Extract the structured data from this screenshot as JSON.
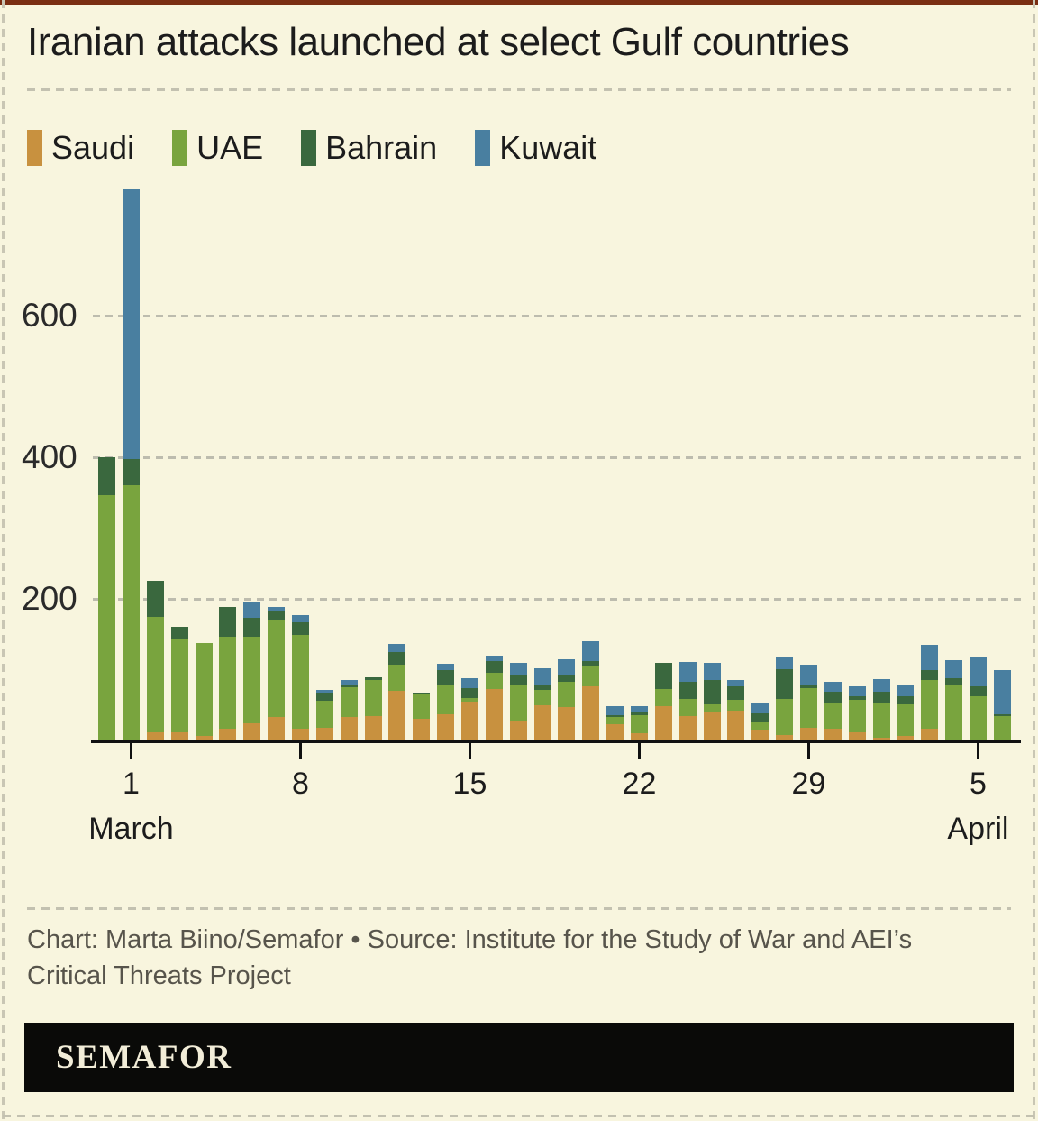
{
  "page": {
    "background": "#F8F5DE",
    "top_bar_color": "#7A2E12",
    "dash_color": "#c3c1b0"
  },
  "header": {
    "title": "Iranian attacks launched at select Gulf countries"
  },
  "legend": {
    "items": [
      {
        "label": "Saudi",
        "color": "#C8913F"
      },
      {
        "label": "UAE",
        "color": "#79A43E"
      },
      {
        "label": "Bahrain",
        "color": "#3A683E"
      },
      {
        "label": "Kuwait",
        "color": "#497FA0"
      }
    ]
  },
  "chart_data": {
    "type": "bar",
    "stacked": true,
    "title": "Iranian attacks launched at select Gulf countries",
    "xlabel": "",
    "ylabel": "",
    "ylim": [
      0,
      800
    ],
    "yticks": [
      200,
      400,
      600
    ],
    "grid": "horizontal-dashed",
    "legend_position": "top-left",
    "series_names": [
      "Saudi",
      "UAE",
      "Bahrain",
      "Kuwait"
    ],
    "colors": {
      "Saudi": "#C8913F",
      "UAE": "#79A43E",
      "Bahrain": "#3A683E",
      "Kuwait": "#497FA0"
    },
    "x_axis": {
      "tick_labels": [
        "1",
        "8",
        "15",
        "22",
        "29",
        "5"
      ],
      "tick_dates": [
        "Mar 1",
        "Mar 8",
        "Mar 15",
        "Mar 22",
        "Mar 29",
        "Apr 5"
      ],
      "month_left": "March",
      "month_right": "April"
    },
    "days": [
      {
        "date": "Feb 29",
        "Saudi": 0,
        "UAE": 346,
        "Bahrain": 54,
        "Kuwait": 0
      },
      {
        "date": "Mar 1",
        "Saudi": 0,
        "UAE": 361,
        "Bahrain": 36,
        "Kuwait": 381
      },
      {
        "date": "Mar 2",
        "Saudi": 11,
        "UAE": 163,
        "Bahrain": 51,
        "Kuwait": 0
      },
      {
        "date": "Mar 3",
        "Saudi": 11,
        "UAE": 133,
        "Bahrain": 17,
        "Kuwait": 0
      },
      {
        "date": "Mar 4",
        "Saudi": 7,
        "UAE": 130,
        "Bahrain": 0,
        "Kuwait": 0
      },
      {
        "date": "Mar 5",
        "Saudi": 16,
        "UAE": 130,
        "Bahrain": 43,
        "Kuwait": 0
      },
      {
        "date": "Mar 6",
        "Saudi": 24,
        "UAE": 123,
        "Bahrain": 26,
        "Kuwait": 23
      },
      {
        "date": "Mar 7",
        "Saudi": 33,
        "UAE": 138,
        "Bahrain": 11,
        "Kuwait": 7
      },
      {
        "date": "Mar 8",
        "Saudi": 17,
        "UAE": 132,
        "Bahrain": 18,
        "Kuwait": 10
      },
      {
        "date": "Mar 9",
        "Saudi": 18,
        "UAE": 38,
        "Bahrain": 12,
        "Kuwait": 4
      },
      {
        "date": "Mar 10",
        "Saudi": 33,
        "UAE": 42,
        "Bahrain": 4,
        "Kuwait": 7
      },
      {
        "date": "Mar 11",
        "Saudi": 35,
        "UAE": 50,
        "Bahrain": 4,
        "Kuwait": 0
      },
      {
        "date": "Mar 12",
        "Saudi": 70,
        "UAE": 37,
        "Bahrain": 18,
        "Kuwait": 11
      },
      {
        "date": "Mar 13",
        "Saudi": 31,
        "UAE": 34,
        "Bahrain": 3,
        "Kuwait": 0
      },
      {
        "date": "Mar 14",
        "Saudi": 37,
        "UAE": 42,
        "Bahrain": 20,
        "Kuwait": 9
      },
      {
        "date": "Mar 15",
        "Saudi": 55,
        "UAE": 5,
        "Bahrain": 14,
        "Kuwait": 14
      },
      {
        "date": "Mar 16",
        "Saudi": 73,
        "UAE": 22,
        "Bahrain": 17,
        "Kuwait": 8
      },
      {
        "date": "Mar 17",
        "Saudi": 28,
        "UAE": 51,
        "Bahrain": 13,
        "Kuwait": 17
      },
      {
        "date": "Mar 18",
        "Saudi": 50,
        "UAE": 21,
        "Bahrain": 7,
        "Kuwait": 24
      },
      {
        "date": "Mar 19",
        "Saudi": 47,
        "UAE": 36,
        "Bahrain": 10,
        "Kuwait": 22
      },
      {
        "date": "Mar 20",
        "Saudi": 77,
        "UAE": 28,
        "Bahrain": 7,
        "Kuwait": 28
      },
      {
        "date": "Mar 21",
        "Saudi": 23,
        "UAE": 10,
        "Bahrain": 3,
        "Kuwait": 13
      },
      {
        "date": "Mar 22",
        "Saudi": 10,
        "UAE": 26,
        "Bahrain": 5,
        "Kuwait": 7
      },
      {
        "date": "Mar 23",
        "Saudi": 48,
        "UAE": 24,
        "Bahrain": 38,
        "Kuwait": 0
      },
      {
        "date": "Mar 24",
        "Saudi": 35,
        "UAE": 23,
        "Bahrain": 25,
        "Kuwait": 28
      },
      {
        "date": "Mar 25",
        "Saudi": 40,
        "UAE": 11,
        "Bahrain": 34,
        "Kuwait": 25
      },
      {
        "date": "Mar 26",
        "Saudi": 42,
        "UAE": 15,
        "Bahrain": 20,
        "Kuwait": 8
      },
      {
        "date": "Mar 27",
        "Saudi": 14,
        "UAE": 11,
        "Bahrain": 13,
        "Kuwait": 14
      },
      {
        "date": "Mar 28",
        "Saudi": 8,
        "UAE": 51,
        "Bahrain": 42,
        "Kuwait": 16
      },
      {
        "date": "Mar 29",
        "Saudi": 18,
        "UAE": 56,
        "Bahrain": 5,
        "Kuwait": 28
      },
      {
        "date": "Mar 30",
        "Saudi": 16,
        "UAE": 38,
        "Bahrain": 15,
        "Kuwait": 14
      },
      {
        "date": "Mar 31",
        "Saudi": 11,
        "UAE": 46,
        "Bahrain": 6,
        "Kuwait": 14
      },
      {
        "date": "Apr 1",
        "Saudi": 4,
        "UAE": 48,
        "Bahrain": 17,
        "Kuwait": 18
      },
      {
        "date": "Apr 2",
        "Saudi": 6,
        "UAE": 45,
        "Bahrain": 12,
        "Kuwait": 15
      },
      {
        "date": "Apr 3",
        "Saudi": 16,
        "UAE": 69,
        "Bahrain": 15,
        "Kuwait": 35
      },
      {
        "date": "Apr 4",
        "Saudi": 0,
        "UAE": 79,
        "Bahrain": 9,
        "Kuwait": 25
      },
      {
        "date": "Apr 5",
        "Saudi": 0,
        "UAE": 62,
        "Bahrain": 14,
        "Kuwait": 43
      },
      {
        "date": "Apr 6",
        "Saudi": 0,
        "UAE": 35,
        "Bahrain": 2,
        "Kuwait": 62
      }
    ]
  },
  "footer": {
    "line1": "Chart: Marta Biino/Semafor • Source: Institute for the Study of War and AEI’s",
    "line2": "Critical Threats Project"
  },
  "logo": {
    "text": "SEMAFOR"
  }
}
